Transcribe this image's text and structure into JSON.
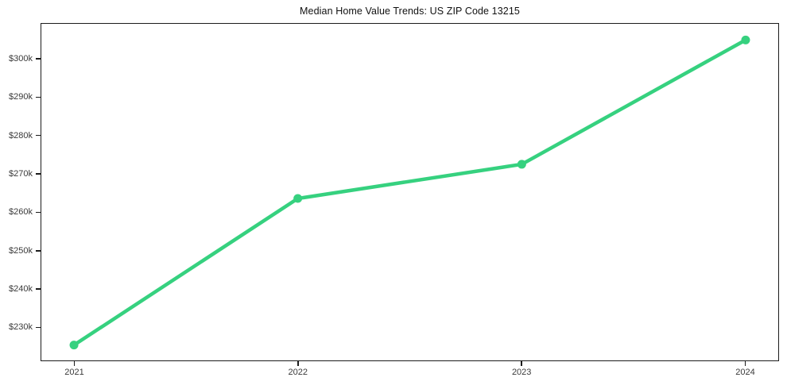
{
  "chart_data": {
    "type": "line",
    "title": "Median Home Value Trends: US ZIP Code 13215",
    "x": [
      "2021",
      "2022",
      "2023",
      "2024"
    ],
    "values": [
      225500,
      263600,
      272500,
      304800
    ],
    "y_ticks": [
      {
        "value": 230000,
        "label": "$230k"
      },
      {
        "value": 240000,
        "label": "$240k"
      },
      {
        "value": 250000,
        "label": "$250k"
      },
      {
        "value": 260000,
        "label": "$260k"
      },
      {
        "value": 270000,
        "label": "$270k"
      },
      {
        "value": 280000,
        "label": "$280k"
      },
      {
        "value": 290000,
        "label": "$290k"
      },
      {
        "value": 300000,
        "label": "$300k"
      }
    ],
    "ylim": [
      221500,
      309000
    ],
    "xlabel": "",
    "ylabel": "",
    "grid": false,
    "legend": "none",
    "marker": "circle",
    "line_color": "#36d17f",
    "frame_color": "#1c1c1c",
    "tick_label_color": "#3a3a3a",
    "background": "#ffffff"
  }
}
